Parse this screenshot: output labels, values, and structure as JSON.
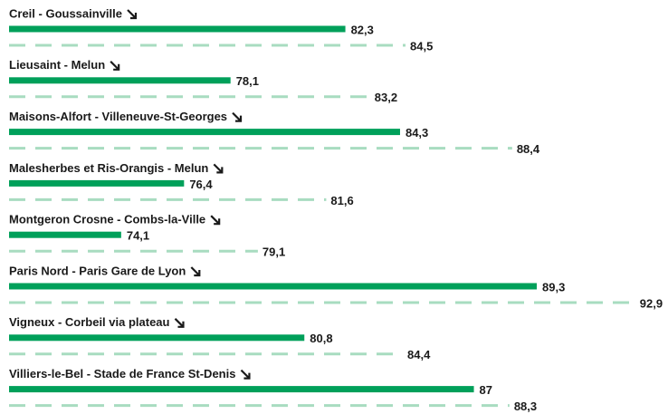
{
  "chart_data": {
    "type": "bar",
    "categories": [
      "Creil - Goussainville",
      "Lieusaint - Melun",
      "Maisons-Alfort - Villeneuve-St-Georges",
      "Malesherbes et Ris-Orangis - Melun",
      "Montgeron Crosne - Combs-la-Ville",
      "Paris Nord - Paris Gare de Lyon",
      "Vigneux - Corbeil via plateau",
      "Villiers-le-Bel - Stade de France St-Denis"
    ],
    "series": [
      {
        "color": "#00a05a",
        "style": "solid",
        "values": [
          82.3,
          78.1,
          84.3,
          76.4,
          74.1,
          89.3,
          80.8,
          87
        ],
        "value_labels": [
          "82,3",
          "78,1",
          "84,3",
          "76,4",
          "74,1",
          "89,3",
          "80,8",
          "87"
        ]
      },
      {
        "color": "#a8dcc0",
        "style": "dashed",
        "values": [
          84.5,
          83.2,
          88.4,
          81.6,
          79.1,
          92.9,
          84.4,
          88.3
        ],
        "value_labels": [
          "84,5",
          "83,2",
          "88,4",
          "81,6",
          "79,1",
          "92,9",
          "84,4",
          "88,3"
        ]
      }
    ],
    "xlim": [
      70,
      94
    ]
  }
}
